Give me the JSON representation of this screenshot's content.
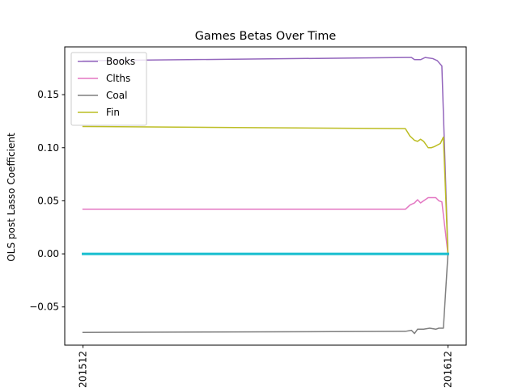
{
  "chart_data": {
    "type": "line",
    "title": "Games Betas Over Time",
    "xlabel": "",
    "ylabel": "OLS post Lasso Coefficient",
    "x_ticks": [
      {
        "x": 0,
        "label": "201512"
      },
      {
        "x": 12,
        "label": "201612"
      }
    ],
    "xlim": [
      -0.6,
      12.6
    ],
    "ylim": [
      -0.086,
      0.195
    ],
    "y_ticks": [
      -0.05,
      0.0,
      0.05,
      0.1,
      0.15
    ],
    "y_tick_labels": [
      "−0.05",
      "0.00",
      "0.05",
      "0.10",
      "0.15"
    ],
    "grid": false,
    "legend_position": "top-left",
    "series": [
      {
        "name": "Books",
        "color": "#9467bd",
        "points": [
          [
            0,
            0.182
          ],
          [
            10.6,
            0.185
          ],
          [
            10.8,
            0.185
          ],
          [
            10.9,
            0.183
          ],
          [
            11.1,
            0.183
          ],
          [
            11.25,
            0.185
          ],
          [
            11.5,
            0.184
          ],
          [
            11.65,
            0.182
          ],
          [
            11.8,
            0.177
          ],
          [
            12,
            0.0
          ]
        ]
      },
      {
        "name": "Clths",
        "color": "#e377c2",
        "points": [
          [
            0,
            0.042
          ],
          [
            10.6,
            0.042
          ],
          [
            10.75,
            0.046
          ],
          [
            10.9,
            0.048
          ],
          [
            11.0,
            0.051
          ],
          [
            11.1,
            0.048
          ],
          [
            11.25,
            0.051
          ],
          [
            11.35,
            0.053
          ],
          [
            11.6,
            0.053
          ],
          [
            11.7,
            0.05
          ],
          [
            11.8,
            0.049
          ],
          [
            12,
            0.0
          ]
        ]
      },
      {
        "name": "Coal",
        "color": "#7f7f7f",
        "points": [
          [
            0,
            -0.074
          ],
          [
            10.6,
            -0.073
          ],
          [
            10.8,
            -0.072
          ],
          [
            10.9,
            -0.075
          ],
          [
            11.0,
            -0.071
          ],
          [
            11.2,
            -0.071
          ],
          [
            11.4,
            -0.07
          ],
          [
            11.6,
            -0.071
          ],
          [
            11.7,
            -0.07
          ],
          [
            11.85,
            -0.07
          ],
          [
            12,
            0.0
          ]
        ]
      },
      {
        "name": "Fin",
        "color": "#bcbd22",
        "points": [
          [
            0,
            0.12
          ],
          [
            10.6,
            0.118
          ],
          [
            10.75,
            0.111
          ],
          [
            10.9,
            0.107
          ],
          [
            11.0,
            0.106
          ],
          [
            11.1,
            0.108
          ],
          [
            11.2,
            0.106
          ],
          [
            11.35,
            0.1
          ],
          [
            11.45,
            0.1
          ],
          [
            11.55,
            0.101
          ],
          [
            11.75,
            0.104
          ],
          [
            11.85,
            0.11
          ],
          [
            12,
            0.0
          ]
        ]
      },
      {
        "name": "",
        "color": "#17becf",
        "points": [
          [
            0,
            0.0
          ],
          [
            12,
            0.0
          ]
        ]
      }
    ],
    "legend_entries": [
      "Books",
      "Clths",
      "Coal",
      "Fin"
    ]
  }
}
